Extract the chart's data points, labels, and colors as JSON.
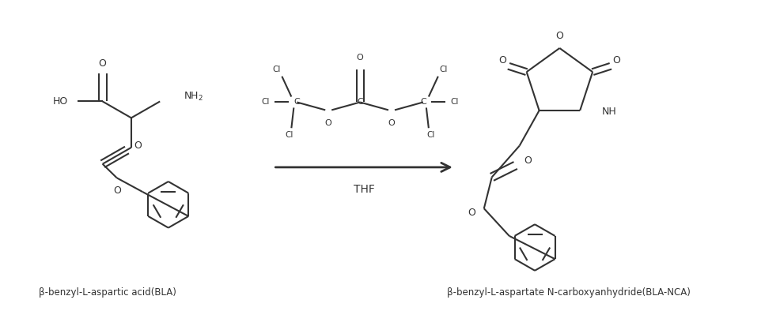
{
  "background_color": "#ffffff",
  "line_color": "#333333",
  "label_left": "β-benzyl-L-aspartic acid(BLA)",
  "label_right": "β-benzyl-L-aspartate N-carboxyanhydride(BLA-NCA)",
  "reagent": "THF",
  "fig_width": 9.87,
  "fig_height": 3.94,
  "dpi": 100
}
